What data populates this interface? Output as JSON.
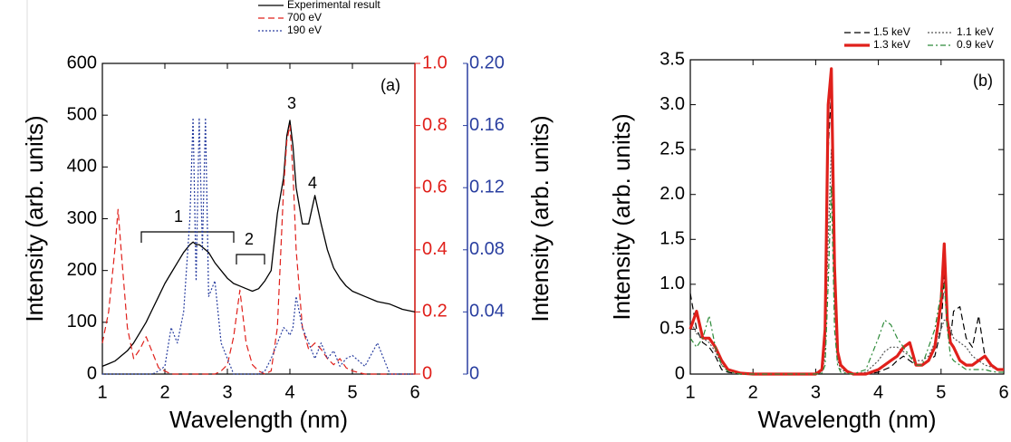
{
  "chart_data": [
    {
      "type": "line",
      "xlabel": "Wavelength (nm)",
      "ylabel": "Intensity (arb. units)",
      "y2label": "Intensity (arb. units)",
      "annotations": [
        "(a)",
        "1",
        "2",
        "3",
        "4"
      ],
      "xlim": [
        1,
        6
      ],
      "xticks": [
        1,
        2,
        3,
        4,
        5,
        6
      ],
      "ylim": [
        0,
        600
      ],
      "yticks": [
        0,
        100,
        200,
        300,
        400,
        500,
        600
      ],
      "y2lim": [
        0,
        1
      ],
      "y2ticks": [
        0,
        0.2,
        0.4,
        0.6,
        0.8,
        {
          "value": 1,
          "label": "1.0"
        }
      ],
      "y3lim": [
        0,
        0.2
      ],
      "y3ticks": [
        0,
        0.04,
        0.08,
        0.12,
        0.16,
        {
          "value": 0.2,
          "label": "0.20"
        }
      ],
      "x": [
        1.0,
        1.1,
        1.2,
        1.25,
        1.3,
        1.4,
        1.5,
        1.6,
        1.7,
        1.8,
        1.9,
        2.0,
        2.1,
        2.2,
        2.3,
        2.4,
        2.45,
        2.5,
        2.55,
        2.6,
        2.65,
        2.7,
        2.8,
        2.9,
        3.0,
        3.1,
        3.2,
        3.3,
        3.4,
        3.5,
        3.6,
        3.7,
        3.8,
        3.9,
        3.95,
        4.0,
        4.05,
        4.1,
        4.2,
        4.3,
        4.4,
        4.5,
        4.6,
        4.7,
        4.8,
        4.9,
        5.0,
        5.2,
        5.4,
        5.6,
        5.8,
        6.0
      ],
      "series": [
        {
          "name": "Experimental result",
          "color": "#000000",
          "line_style": "solid",
          "values": [
            15,
            20,
            25,
            30,
            35,
            45,
            60,
            80,
            100,
            125,
            150,
            175,
            195,
            215,
            235,
            250,
            255,
            250,
            250,
            245,
            240,
            235,
            215,
            200,
            185,
            175,
            170,
            165,
            160,
            165,
            180,
            200,
            310,
            380,
            460,
            490,
            440,
            360,
            290,
            290,
            345,
            290,
            240,
            205,
            185,
            170,
            160,
            150,
            140,
            135,
            125,
            120
          ]
        },
        {
          "name": "700 eV",
          "color": "#e0201b",
          "line_style": "dashed",
          "axis": "y2",
          "values": [
            0.1,
            0.2,
            0.4,
            0.53,
            0.4,
            0.15,
            0.05,
            0.08,
            0.12,
            0.07,
            0.02,
            0.01,
            0,
            0,
            0,
            0,
            0,
            0,
            0,
            0,
            0,
            0,
            0,
            0.01,
            0.03,
            0.12,
            0.27,
            0.1,
            0.03,
            0.01,
            0,
            0.01,
            0.15,
            0.6,
            0.75,
            0.8,
            0.65,
            0.4,
            0.15,
            0.08,
            0.1,
            0.08,
            0.05,
            0.03,
            0.05,
            0.02,
            0.01,
            0,
            0,
            0,
            0,
            0
          ]
        },
        {
          "name": "190 eV",
          "color": "#2a3fa0",
          "line_style": "dotted",
          "axis": "y3",
          "values": [
            0,
            0,
            0,
            0,
            0,
            0,
            0,
            0,
            0,
            0,
            0.002,
            0.005,
            0.03,
            0.02,
            0.04,
            0.1,
            0.165,
            0.06,
            0.165,
            0.08,
            0.165,
            0.05,
            0.06,
            0.02,
            0.01,
            0,
            0,
            0,
            0,
            0,
            0.002,
            0.01,
            0.02,
            0.03,
            0.028,
            0.025,
            0.03,
            0.05,
            0.03,
            0.02,
            0.01,
            0.02,
            0.01,
            0.015,
            0.005,
            0.01,
            0.012,
            0.005,
            0.02,
            0,
            0,
            0
          ]
        }
      ]
    },
    {
      "type": "line",
      "xlabel": "Wavelength (nm)",
      "ylabel": "Intensity (arb. units)",
      "annotations": [
        "(b)"
      ],
      "xlim": [
        1,
        6
      ],
      "xticks": [
        1,
        2,
        3,
        4,
        5,
        6
      ],
      "ylim": [
        0,
        3.5
      ],
      "yticks": [
        0,
        0.5,
        {
          "value": 1,
          "label": "1.0"
        },
        1.5,
        {
          "value": 2,
          "label": "2.0"
        },
        2.5,
        {
          "value": 3,
          "label": "3.0"
        },
        3.5
      ],
      "x": [
        1.0,
        1.1,
        1.2,
        1.3,
        1.4,
        1.5,
        1.6,
        1.8,
        2.0,
        2.5,
        3.0,
        3.1,
        3.15,
        3.2,
        3.25,
        3.3,
        3.35,
        3.4,
        3.5,
        3.6,
        3.8,
        4.0,
        4.1,
        4.2,
        4.3,
        4.4,
        4.5,
        4.6,
        4.7,
        4.8,
        4.9,
        5.0,
        5.05,
        5.1,
        5.15,
        5.2,
        5.3,
        5.4,
        5.5,
        5.6,
        5.7,
        5.8,
        5.9,
        6.0
      ],
      "series": [
        {
          "name": "1.5 keV",
          "color": "#000000",
          "line_style": "dashed",
          "values": [
            0.9,
            0.5,
            0.35,
            0.3,
            0.2,
            0.05,
            0.02,
            0,
            0,
            0,
            0,
            0.05,
            0.4,
            2.5,
            3.15,
            1.0,
            0.2,
            0.1,
            0.02,
            0,
            0,
            0.02,
            0.05,
            0.08,
            0.15,
            0.2,
            0.15,
            0.1,
            0.1,
            0.15,
            0.2,
            0.5,
            1.1,
            0.5,
            0.4,
            0.7,
            0.75,
            0.4,
            0.3,
            0.65,
            0.2,
            0.1,
            0.05,
            0.05
          ]
        },
        {
          "name": "1.1 keV",
          "color": "#555555",
          "line_style": "dotted",
          "values": [
            0.6,
            0.45,
            0.4,
            0.35,
            0.25,
            0.1,
            0.05,
            0,
            0,
            0,
            0,
            0.02,
            0.2,
            1.5,
            2.5,
            0.8,
            0.15,
            0.05,
            0.02,
            0,
            0.02,
            0.15,
            0.25,
            0.3,
            0.3,
            0.25,
            0.2,
            0.15,
            0.15,
            0.2,
            0.35,
            0.5,
            0.6,
            0.6,
            0.5,
            0.4,
            0.35,
            0.3,
            0.2,
            0.15,
            0.1,
            0.08,
            0.05,
            0.05
          ]
        },
        {
          "name": "1.3 keV",
          "color": "#e0201b",
          "line_style": "thick",
          "values": [
            0.5,
            0.7,
            0.4,
            0.4,
            0.3,
            0.15,
            0.05,
            0.01,
            0,
            0,
            0,
            0.05,
            0.5,
            3.0,
            3.4,
            1.2,
            0.25,
            0.1,
            0.03,
            0,
            0,
            0.05,
            0.1,
            0.15,
            0.2,
            0.3,
            0.35,
            0.1,
            0.1,
            0.15,
            0.3,
            0.8,
            1.45,
            0.6,
            0.35,
            0.3,
            0.15,
            0.1,
            0.1,
            0.15,
            0.2,
            0.1,
            0.05,
            0.05
          ]
        },
        {
          "name": "0.9 keV",
          "color": "#2e8b3a",
          "line_style": "dash-dot",
          "values": [
            0.4,
            0.3,
            0.4,
            0.65,
            0.3,
            0.1,
            0.03,
            0,
            0,
            0,
            0,
            0.01,
            0.1,
            1.0,
            2.1,
            0.5,
            0.1,
            0.02,
            0.01,
            0,
            0.05,
            0.4,
            0.6,
            0.55,
            0.4,
            0.3,
            0.2,
            0.1,
            0.1,
            0.3,
            0.5,
            0.9,
            1.0,
            0.5,
            0.2,
            0.15,
            0.1,
            0.05,
            0.05,
            0.05,
            0.05,
            0.03,
            0.02,
            0.02
          ]
        }
      ]
    }
  ]
}
